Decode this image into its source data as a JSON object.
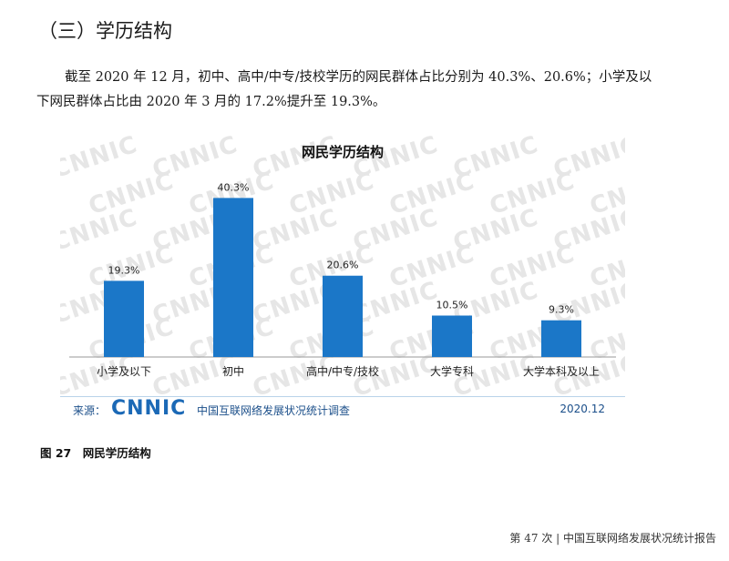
{
  "section": {
    "title": "（三）学历结构"
  },
  "paragraph": "截至 2020 年 12 月，初中、高中/中专/技校学历的网民群体占比分别为 40.3%、20.6%；小学及以下网民群体占比由 2020 年 3 月的 17.2%提升至 19.3%。",
  "chart": {
    "source_label": "来源：",
    "logo_text": "CNNIC",
    "source_name": "中国互联网络发展状况统计调查",
    "date": "2020.12",
    "bar_color": "#1b77c8",
    "watermark_text": "CNNIC"
  },
  "chart_data": {
    "type": "bar",
    "title": "网民学历结构",
    "categories": [
      "小学及以下",
      "初中",
      "高中/中专/技校",
      "大学专科",
      "大学本科及以上"
    ],
    "values": [
      19.3,
      40.3,
      20.6,
      10.5,
      9.3
    ],
    "value_labels": [
      "19.3%",
      "40.3%",
      "20.6%",
      "10.5%",
      "9.3%"
    ],
    "ylim": [
      0,
      45
    ],
    "grid": false,
    "legend": false
  },
  "figure": {
    "caption": "图 27　网民学历结构"
  },
  "footer": {
    "text": "第 47 次 | 中国互联网络发展状况统计报告"
  }
}
